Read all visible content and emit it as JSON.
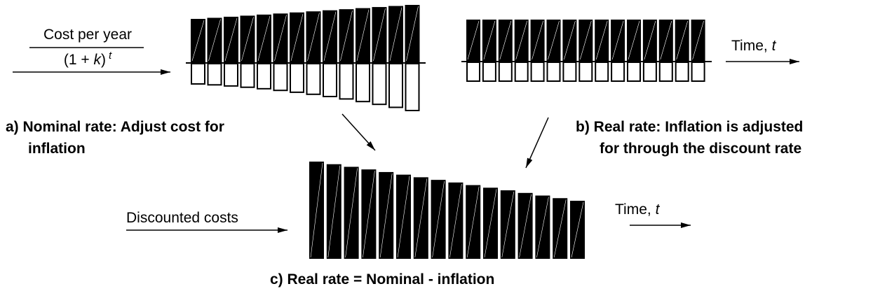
{
  "panel_a": {
    "numerator": "Cost per year",
    "denominator": {
      "open": "(1 + ",
      "variable": "k",
      "close": ")",
      "exponent": "t"
    },
    "caption": [
      "a)  Nominal rate: Adjust cost for",
      "inflation"
    ]
  },
  "panel_b": {
    "axis_label": {
      "text": "Time, ",
      "variable": "t"
    },
    "caption": [
      "b)  Real rate: Inflation is adjusted",
      "for through the discount rate"
    ]
  },
  "panel_c": {
    "label": "Discounted costs",
    "axis_label": {
      "text": "Time, ",
      "variable": "t"
    },
    "caption": [
      "c)  Real rate = Nominal - inflation"
    ]
  }
}
